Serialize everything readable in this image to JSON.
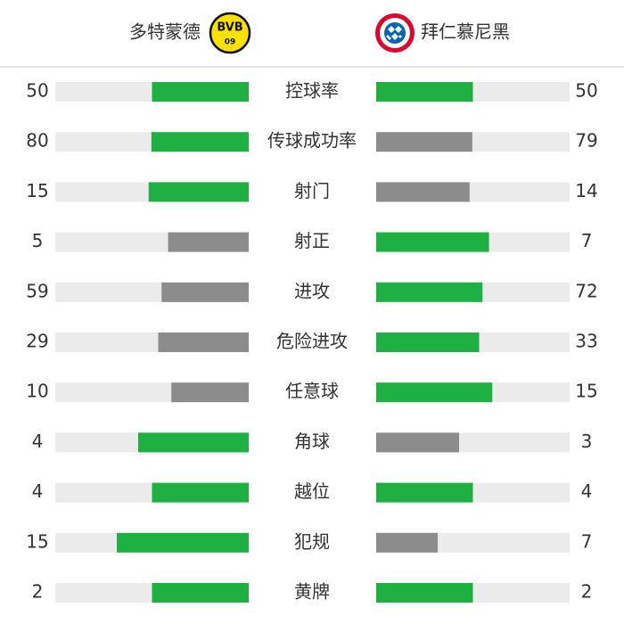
{
  "header": {
    "home_team": "多特蒙德",
    "away_team": "拜仁慕尼黑",
    "home_logo": {
      "top": "BVB",
      "bottom": "09"
    }
  },
  "colors": {
    "leading": "#1fb043",
    "trailing": "#8c8c8c",
    "track": "#ebebeb"
  },
  "stats": [
    {
      "label": "控球率",
      "home": 50,
      "away": 50
    },
    {
      "label": "传球成功率",
      "home": 80,
      "away": 79
    },
    {
      "label": "射门",
      "home": 15,
      "away": 14
    },
    {
      "label": "射正",
      "home": 5,
      "away": 7
    },
    {
      "label": "进攻",
      "home": 59,
      "away": 72
    },
    {
      "label": "危险进攻",
      "home": 29,
      "away": 33
    },
    {
      "label": "任意球",
      "home": 10,
      "away": 15
    },
    {
      "label": "角球",
      "home": 4,
      "away": 3
    },
    {
      "label": "越位",
      "home": 4,
      "away": 4
    },
    {
      "label": "犯规",
      "home": 15,
      "away": 7
    },
    {
      "label": "黄牌",
      "home": 2,
      "away": 2
    }
  ]
}
